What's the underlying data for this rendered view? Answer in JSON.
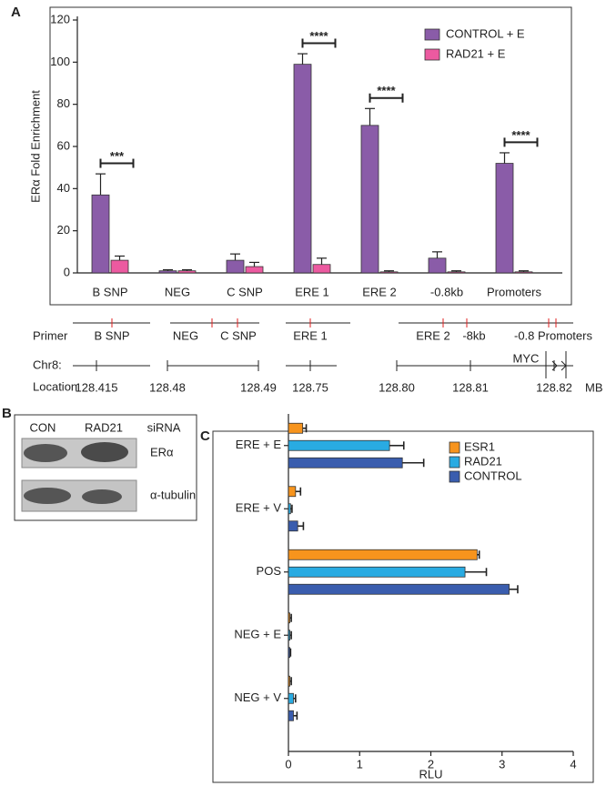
{
  "panels": [
    "A",
    "B",
    "C"
  ],
  "chart_data": [
    {
      "type": "bar",
      "ylabel": "ERα Fold Enrichment",
      "categories": [
        "B SNP",
        "NEG",
        "C SNP",
        "ERE 1",
        "ERE 2",
        "-0.8kb",
        "Promoters"
      ],
      "series": [
        {
          "name": "CONTROL + E",
          "color": "#8a5ca8",
          "values": [
            37,
            1,
            6,
            99,
            70,
            7,
            52
          ],
          "errors": [
            10,
            0.5,
            3,
            5,
            8,
            3,
            5
          ]
        },
        {
          "name": "RAD21 + E",
          "color": "#ec5aa0",
          "values": [
            6,
            1,
            3,
            4,
            0.5,
            0.5,
            0.5
          ],
          "errors": [
            2,
            0.5,
            2,
            3,
            0.5,
            0.5,
            0.5
          ]
        }
      ],
      "annotations": [
        {
          "category": "B SNP",
          "text": "***"
        },
        {
          "category": "ERE 1",
          "text": "****"
        },
        {
          "category": "ERE 2",
          "text": "****"
        },
        {
          "category": "Promoters",
          "text": "****"
        }
      ],
      "ylim": [
        0,
        120
      ],
      "yticks": [
        0,
        20,
        40,
        60,
        80,
        100,
        120
      ],
      "legend": "upper right"
    },
    {
      "type": "hbar",
      "xlabel": "RLU",
      "categories": [
        "ERE + E",
        "ERE + V",
        "POS",
        "NEG + E",
        "NEG + V"
      ],
      "series": [
        {
          "name": "ESR1",
          "color": "#f7941d",
          "values": [
            0.2,
            0.1,
            2.65,
            0.02,
            0.02
          ],
          "errors": [
            0.05,
            0.07,
            0.03,
            0.02,
            0.02
          ]
        },
        {
          "name": "RAD21",
          "color": "#29abe2",
          "values": [
            1.42,
            0.03,
            2.48,
            0.02,
            0.07
          ],
          "errors": [
            0.2,
            0.02,
            0.3,
            0.02,
            0.03
          ]
        },
        {
          "name": "CONTROL",
          "color": "#3a5dae",
          "values": [
            1.6,
            0.13,
            3.1,
            0.02,
            0.07
          ],
          "errors": [
            0.3,
            0.08,
            0.12,
            0.01,
            0.05
          ]
        }
      ],
      "xlim": [
        0,
        4
      ],
      "xticks": [
        0,
        1,
        2,
        3,
        4
      ],
      "legend": "upper right"
    }
  ],
  "map": {
    "row_labels": [
      "Primer",
      "Chr8:",
      "Location"
    ],
    "primers": [
      "B SNP",
      "NEG",
      "C SNP",
      "ERE 1",
      "ERE 2",
      "-8kb",
      "-0.8 Promoters"
    ],
    "gene": "MYC",
    "locations": [
      "128.415",
      "128.48",
      "128.49",
      "128.75",
      "128.80",
      "128.81",
      "128.82"
    ],
    "unit": "MB"
  },
  "blot": {
    "lanes": [
      "CON",
      "RAD21"
    ],
    "condition": "siRNA",
    "bands": [
      "ERα",
      "α-tubulin"
    ]
  }
}
